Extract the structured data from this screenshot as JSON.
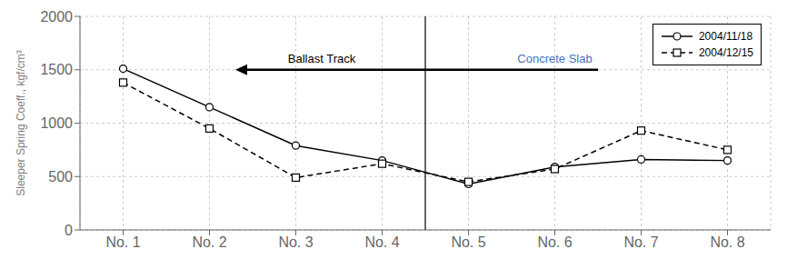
{
  "chart_data": {
    "type": "line",
    "categories": [
      "No. 1",
      "No. 2",
      "No. 3",
      "No. 4",
      "No. 5",
      "No. 6",
      "No. 7",
      "No. 8"
    ],
    "series": [
      {
        "name": "2004/11/18",
        "color": "#000000",
        "marker": "circle",
        "line_style": "solid",
        "values": [
          1510,
          1150,
          790,
          650,
          430,
          590,
          660,
          650
        ]
      },
      {
        "name": "2004/12/15",
        "color": "#000000",
        "marker": "square",
        "line_style": "dashed",
        "values": [
          1380,
          950,
          490,
          620,
          450,
          570,
          930,
          750
        ]
      }
    ],
    "ylabel": "Sleeper Spring Coeff., kgf/cm³",
    "ylim": [
      0,
      2000
    ],
    "yticks": [
      0,
      500,
      1000,
      1500,
      2000
    ],
    "grid": true,
    "legend": "upper right",
    "annotations": [
      {
        "text": "Ballast Track",
        "color": "#000000"
      },
      {
        "text": "Concrete Slab",
        "color": "#4472C4"
      }
    ]
  }
}
